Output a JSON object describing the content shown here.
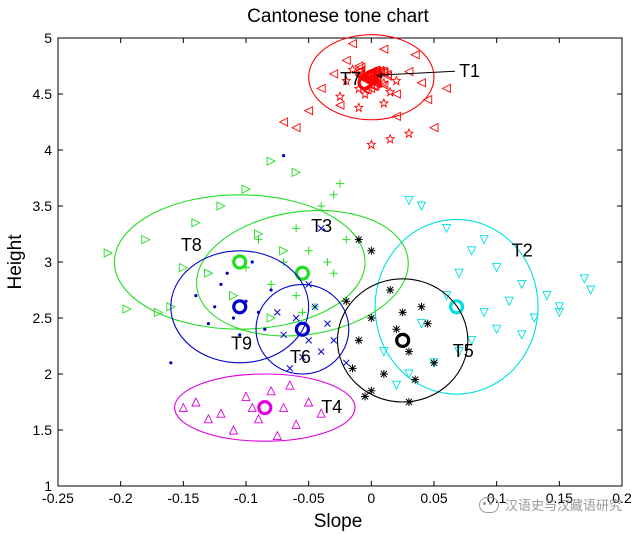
{
  "chart_data": {
    "type": "scatter",
    "title": "Cantonese tone chart",
    "xlabel": "Slope",
    "ylabel": "Height",
    "xlim": [
      -0.25,
      0.2
    ],
    "ylim": [
      1,
      5
    ],
    "xticks": [
      "-0.25",
      "-0.2",
      "-0.15",
      "-0.1",
      "-0.05",
      "0",
      "0.05",
      "0.1",
      "0.15",
      "0.2"
    ],
    "yticks": [
      "1",
      "1.5",
      "2",
      "2.5",
      "3",
      "3.5",
      "4",
      "4.5",
      "5"
    ],
    "grid": false,
    "series": [
      {
        "name": "T1",
        "color": "#ff0000",
        "marker": "tri-left",
        "center": [
          0.0,
          4.65
        ],
        "ellipse": {
          "rx": 0.05,
          "ry": 0.38,
          "angle": 0
        },
        "label_pos": [
          0.07,
          4.65
        ],
        "points": [
          [
            -0.02,
            4.8
          ],
          [
            0.01,
            4.9
          ],
          [
            0.03,
            4.7
          ],
          [
            -0.04,
            4.55
          ],
          [
            0.02,
            4.5
          ],
          [
            0.04,
            4.6
          ],
          [
            -0.01,
            4.75
          ],
          [
            0.0,
            4.62
          ],
          [
            -0.03,
            4.68
          ],
          [
            0.035,
            4.85
          ],
          [
            -0.05,
            4.35
          ],
          [
            0.045,
            4.45
          ],
          [
            -0.015,
            4.95
          ],
          [
            0.02,
            4.3
          ],
          [
            -0.06,
            4.2
          ],
          [
            0.05,
            4.2
          ],
          [
            -0.025,
            4.4
          ],
          [
            0.01,
            4.58
          ],
          [
            -0.07,
            4.25
          ],
          [
            0.06,
            4.55
          ]
        ]
      },
      {
        "name": "T7",
        "color": "#ff0000",
        "marker": "star",
        "center": [
          -0.005,
          4.6
        ],
        "ellipse": null,
        "label_pos": [
          -0.025,
          4.58
        ],
        "points": [
          [
            -0.01,
            4.55
          ],
          [
            0.0,
            4.65
          ],
          [
            0.01,
            4.6
          ],
          [
            -0.02,
            4.62
          ],
          [
            0.005,
            4.7
          ],
          [
            -0.005,
            4.5
          ],
          [
            0.015,
            4.52
          ],
          [
            -0.015,
            4.72
          ],
          [
            0.02,
            4.62
          ],
          [
            -0.025,
            4.48
          ],
          [
            0.01,
            4.42
          ],
          [
            -0.01,
            4.38
          ],
          [
            0.03,
            4.15
          ],
          [
            0.0,
            4.05
          ],
          [
            0.015,
            4.1
          ]
        ]
      },
      {
        "name": "T2",
        "color": "#00e0e0",
        "marker": "tri-down",
        "center": [
          0.068,
          2.6
        ],
        "ellipse": {
          "rx": 0.065,
          "ry": 0.78,
          "angle": 0
        },
        "label_pos": [
          0.112,
          3.05
        ],
        "points": [
          [
            0.03,
            3.55
          ],
          [
            0.04,
            3.5
          ],
          [
            0.06,
            3.3
          ],
          [
            0.08,
            3.1
          ],
          [
            0.1,
            2.95
          ],
          [
            0.12,
            2.8
          ],
          [
            0.14,
            2.7
          ],
          [
            0.17,
            2.85
          ],
          [
            0.175,
            2.75
          ],
          [
            0.15,
            2.6
          ],
          [
            0.13,
            2.5
          ],
          [
            0.1,
            2.4
          ],
          [
            0.08,
            2.3
          ],
          [
            0.07,
            2.2
          ],
          [
            0.05,
            2.1
          ],
          [
            0.03,
            2.0
          ],
          [
            0.02,
            1.9
          ],
          [
            0.09,
            2.55
          ],
          [
            0.11,
            2.65
          ],
          [
            0.06,
            2.7
          ],
          [
            0.04,
            2.45
          ],
          [
            0.12,
            2.35
          ],
          [
            0.15,
            2.55
          ],
          [
            0.09,
            3.2
          ],
          [
            0.07,
            2.9
          ],
          [
            0.01,
            2.2
          ]
        ]
      },
      {
        "name": "T3",
        "color": "#22dd22",
        "marker": "plus",
        "center": [
          -0.055,
          2.9
        ],
        "ellipse": {
          "rx": 0.085,
          "ry": 0.55,
          "angle": -8
        },
        "label_pos": [
          -0.048,
          3.27
        ],
        "points": [
          [
            -0.04,
            3.5
          ],
          [
            -0.06,
            3.3
          ],
          [
            -0.03,
            3.6
          ],
          [
            -0.05,
            3.1
          ],
          [
            -0.07,
            3.0
          ],
          [
            -0.02,
            3.2
          ],
          [
            -0.08,
            2.8
          ],
          [
            -0.06,
            2.7
          ],
          [
            -0.045,
            2.6
          ],
          [
            -0.03,
            2.9
          ],
          [
            -0.09,
            3.2
          ],
          [
            -0.1,
            2.95
          ],
          [
            -0.025,
            3.7
          ],
          [
            -0.055,
            2.55
          ],
          [
            -0.035,
            3.0
          ]
        ]
      },
      {
        "name": "T8",
        "color": "#22dd22",
        "marker": "tri-right",
        "center": [
          -0.105,
          3.0
        ],
        "ellipse": {
          "rx": 0.1,
          "ry": 0.6,
          "angle": 0
        },
        "label_pos": [
          -0.152,
          3.1
        ],
        "points": [
          [
            -0.21,
            3.08
          ],
          [
            -0.195,
            2.58
          ],
          [
            -0.18,
            3.2
          ],
          [
            -0.16,
            2.6
          ],
          [
            -0.14,
            3.35
          ],
          [
            -0.12,
            3.5
          ],
          [
            -0.1,
            3.65
          ],
          [
            -0.08,
            3.9
          ],
          [
            -0.07,
            3.1
          ],
          [
            -0.13,
            2.9
          ],
          [
            -0.15,
            2.95
          ],
          [
            -0.11,
            2.7
          ],
          [
            -0.09,
            3.25
          ],
          [
            -0.06,
            3.8
          ],
          [
            -0.17,
            2.55
          ],
          [
            -0.08,
            2.5
          ]
        ]
      },
      {
        "name": "T9",
        "color": "#0000cc",
        "marker": "dot",
        "center": [
          -0.105,
          2.6
        ],
        "ellipse": {
          "rx": 0.055,
          "ry": 0.5,
          "angle": 0
        },
        "label_pos": [
          -0.112,
          2.22
        ],
        "points": [
          [
            -0.12,
            2.8
          ],
          [
            -0.11,
            2.5
          ],
          [
            -0.1,
            2.65
          ],
          [
            -0.09,
            2.55
          ],
          [
            -0.13,
            2.45
          ],
          [
            -0.14,
            2.7
          ],
          [
            -0.08,
            2.75
          ],
          [
            -0.105,
            2.35
          ],
          [
            -0.115,
            2.9
          ],
          [
            -0.095,
            3.0
          ],
          [
            -0.125,
            2.6
          ],
          [
            -0.085,
            2.4
          ],
          [
            -0.16,
            2.1
          ],
          [
            -0.07,
            3.95
          ]
        ]
      },
      {
        "name": "T6",
        "color": "#0000cc",
        "marker": "x",
        "center": [
          -0.055,
          2.4
        ],
        "ellipse": {
          "rx": 0.037,
          "ry": 0.4,
          "angle": 0
        },
        "label_pos": [
          -0.065,
          2.1
        ],
        "points": [
          [
            -0.06,
            2.5
          ],
          [
            -0.05,
            2.3
          ],
          [
            -0.04,
            2.2
          ],
          [
            -0.07,
            2.35
          ],
          [
            -0.045,
            2.6
          ],
          [
            -0.055,
            2.15
          ],
          [
            -0.035,
            2.45
          ],
          [
            -0.065,
            2.05
          ],
          [
            -0.03,
            2.3
          ],
          [
            -0.075,
            2.55
          ],
          [
            -0.05,
            2.8
          ],
          [
            -0.04,
            3.3
          ],
          [
            -0.02,
            2.1
          ]
        ]
      },
      {
        "name": "T5",
        "color": "#000000",
        "marker": "asterisk",
        "center": [
          0.025,
          2.3
        ],
        "ellipse": {
          "rx": 0.052,
          "ry": 0.55,
          "angle": 0
        },
        "label_pos": [
          0.065,
          2.15
        ],
        "points": [
          [
            0.0,
            2.5
          ],
          [
            0.02,
            2.4
          ],
          [
            0.03,
            2.2
          ],
          [
            0.01,
            2.0
          ],
          [
            -0.01,
            2.3
          ],
          [
            0.04,
            2.6
          ],
          [
            0.05,
            2.1
          ],
          [
            0.0,
            1.85
          ],
          [
            -0.02,
            2.65
          ],
          [
            0.015,
            2.75
          ],
          [
            0.035,
            1.95
          ],
          [
            -0.015,
            2.05
          ],
          [
            0.045,
            2.45
          ],
          [
            0.025,
            2.55
          ],
          [
            -0.01,
            3.2
          ],
          [
            0.0,
            3.1
          ],
          [
            -0.005,
            1.8
          ],
          [
            0.03,
            1.75
          ]
        ]
      },
      {
        "name": "T4",
        "color": "#e000e0",
        "marker": "tri-up",
        "center": [
          -0.085,
          1.7
        ],
        "ellipse": {
          "rx": 0.072,
          "ry": 0.3,
          "angle": 0
        },
        "label_pos": [
          -0.04,
          1.65
        ],
        "points": [
          [
            -0.14,
            1.75
          ],
          [
            -0.12,
            1.65
          ],
          [
            -0.1,
            1.8
          ],
          [
            -0.09,
            1.6
          ],
          [
            -0.07,
            1.7
          ],
          [
            -0.06,
            1.55
          ],
          [
            -0.05,
            1.75
          ],
          [
            -0.11,
            1.5
          ],
          [
            -0.08,
            1.85
          ],
          [
            -0.13,
            1.6
          ],
          [
            -0.04,
            1.65
          ],
          [
            -0.15,
            1.7
          ],
          [
            -0.065,
            1.9
          ],
          [
            -0.095,
            1.7
          ],
          [
            -0.075,
            1.45
          ]
        ]
      }
    ]
  },
  "watermark": {
    "text": "汉语史与汉藏语研究"
  }
}
